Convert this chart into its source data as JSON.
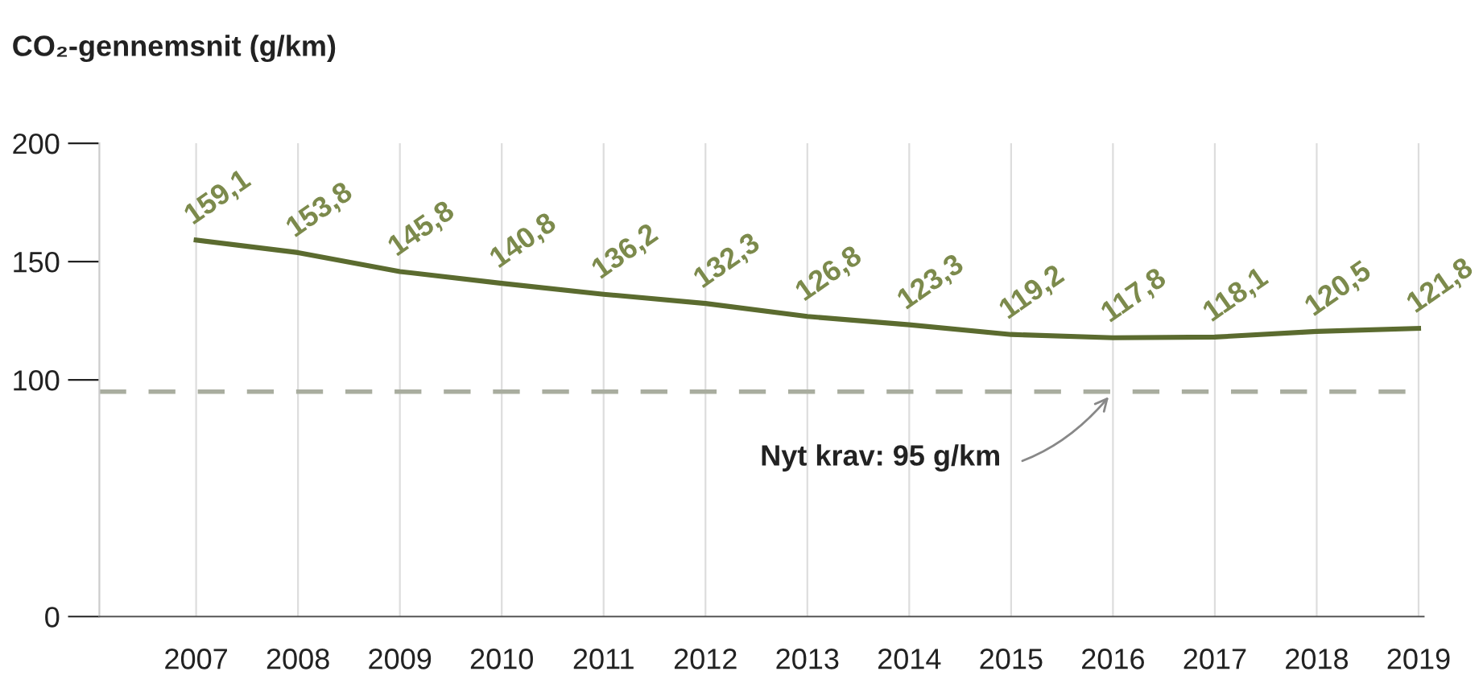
{
  "chart_data": {
    "type": "line",
    "title": "CO₂-gennemsnit (g/km)",
    "categories": [
      "2007",
      "2008",
      "2009",
      "2010",
      "2011",
      "2012",
      "2013",
      "2014",
      "2015",
      "2016",
      "2017",
      "2018",
      "2019"
    ],
    "series": [
      {
        "color": "#5b6b2f",
        "values": [
          159.1,
          153.8,
          145.8,
          140.8,
          136.2,
          132.3,
          126.8,
          123.3,
          119.2,
          117.8,
          118.1,
          120.5,
          121.8
        ],
        "value_labels": [
          "159,1",
          "153,8",
          "145,8",
          "140,8",
          "136,2",
          "132,3",
          "126,8",
          "123,3",
          "119,2",
          "117,8",
          "118,1",
          "120,5",
          "121,8"
        ]
      }
    ],
    "ylim": [
      0,
      200
    ],
    "yticks": [
      0,
      100,
      150,
      200
    ],
    "grid": "x",
    "marker": "none",
    "line_style": "solid",
    "ref_lines": [
      {
        "axis": "y",
        "value": 95,
        "label": "Nyt krav: 95 g/km",
        "color": "#a9ad9f",
        "line_style": "dashed"
      }
    ]
  }
}
